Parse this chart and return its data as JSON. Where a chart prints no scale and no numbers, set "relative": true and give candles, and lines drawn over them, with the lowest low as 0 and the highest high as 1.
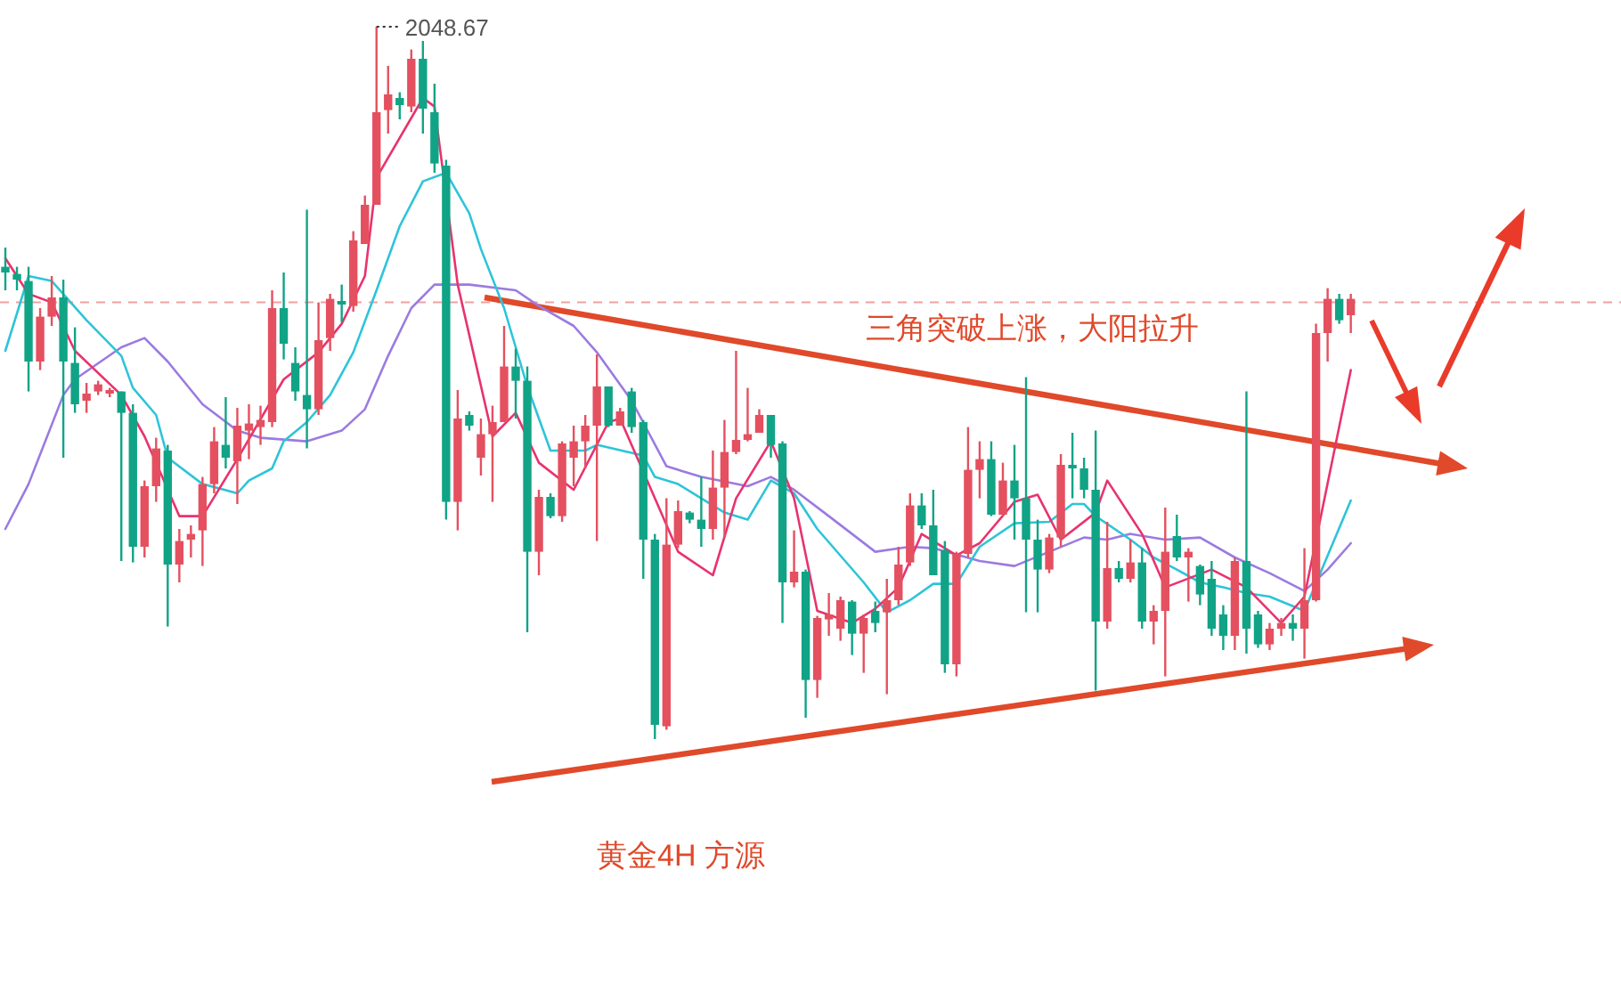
{
  "chart_data": {
    "type": "candlestick",
    "relative": true,
    "categories": [
      null,
      null,
      null,
      null,
      null,
      null,
      null,
      null,
      null,
      null,
      null,
      null,
      null,
      null,
      null,
      null,
      null,
      null,
      null,
      null,
      null,
      null,
      null,
      null,
      null,
      null,
      null,
      null,
      null,
      null,
      null,
      null,
      null,
      null,
      null,
      null,
      null,
      null,
      null,
      null,
      null,
      null,
      null,
      null,
      null,
      null,
      null,
      null,
      null,
      null,
      null,
      null,
      null,
      null,
      null,
      null,
      null,
      null,
      null,
      null,
      null,
      null,
      null,
      null,
      null,
      null,
      null,
      null,
      null,
      null,
      null,
      null,
      null,
      null,
      null,
      null,
      null,
      null,
      null,
      null,
      null,
      null,
      null,
      null,
      null,
      null,
      null,
      null,
      null,
      null,
      null,
      null,
      null,
      null,
      null,
      null,
      null,
      null,
      null,
      null,
      null,
      null,
      null,
      null,
      null,
      null,
      null,
      null,
      null,
      null,
      null,
      null,
      null,
      null,
      null,
      null,
      null,
      null,
      null,
      null,
      null,
      null,
      null,
      null,
      null,
      null,
      null,
      null,
      null,
      null,
      null,
      null
    ],
    "colors": [
      "#11a386",
      "#11a386",
      "#11a386",
      "#e4505f",
      "#e4505f",
      "#11a386",
      "#11a386",
      "#e4505f",
      "#e4505f",
      "#e4505f",
      "#11a386",
      "#11a386",
      "#e4505f",
      "#e4505f",
      "#11a386",
      "#e4505f",
      "#e4505f",
      "#e4505f",
      "#e4505f",
      "#11a386",
      "#e4505f",
      "#e4505f",
      "#e4505f",
      "#e4505f",
      "#11a386",
      "#11a386",
      "#11a386",
      "#e4505f",
      "#e4505f",
      "#11a386",
      "#e4505f",
      "#e4505f",
      "#e4505f",
      "#e4505f",
      "#11a386",
      "#e4505f",
      "#11a386",
      "#11a386",
      "#11a386",
      "#e4505f",
      "#11a386",
      "#e4505f",
      "#e4505f",
      "#e4505f",
      "#11a386",
      "#11a386",
      "#e4505f",
      "#11a386",
      "#e4505f",
      "#e4505f",
      "#e4505f",
      "#e4505f",
      "#11a386",
      "#e4505f",
      "#11a386",
      "#11a386",
      "#11a386",
      "#e4505f",
      "#e4505f",
      "#11a386",
      "#11a386",
      "#e4505f",
      "#e4505f",
      "#e4505f",
      "#e4505f",
      "#e4505f",
      "#11a386",
      "#11a386",
      "#e4505f",
      "#11a386",
      "#e4505f",
      "#e4505f",
      "#e4505f",
      "#11a386",
      "#e4505f",
      "#11a386",
      "#e4505f",
      "#e4505f",
      "#e4505f",
      "#11a386",
      "#11a386",
      "#11a386",
      "#e4505f",
      "#e4505f",
      "#e4505f",
      "#11a386",
      "#e4505f",
      "#11a386",
      "#11a386",
      "#11a386",
      "#e4505f",
      "#e4505f",
      "#11a386",
      "#11a386",
      "#11a386",
      "#e4505f",
      "#11a386",
      "#e4505f",
      "#11a386",
      "#e4505f",
      "#e4505f",
      "#11a386",
      "#e4505f",
      "#11a386",
      "#11a386",
      "#11a386",
      "#e4505f",
      "#11a386",
      "#11a386",
      "#e4505f",
      "#e4505f",
      "#11a386",
      "#e4505f",
      "#e4505f",
      "#e4505f",
      "#11a386",
      "#e4505f",
      null,
      null,
      null,
      null,
      null,
      null,
      null,
      null,
      null,
      null,
      null,
      null,
      null,
      null,
      null
    ],
    "ohlc": [
      [
        0.663,
        0.69,
        0.63,
        0.655
      ],
      [
        0.653,
        0.663,
        0.63,
        0.645
      ],
      [
        0.643,
        0.663,
        0.488,
        0.53
      ],
      [
        0.53,
        0.605,
        0.518,
        0.593
      ],
      [
        0.593,
        0.65,
        0.58,
        0.62
      ],
      [
        0.62,
        0.645,
        0.395,
        0.53
      ],
      [
        0.528,
        0.578,
        0.458,
        0.47
      ],
      [
        0.475,
        0.5,
        0.458,
        0.485
      ],
      [
        0.488,
        0.503,
        0.483,
        0.498
      ],
      [
        0.485,
        0.493,
        0.48,
        0.49
      ],
      [
        0.488,
        0.488,
        0.25,
        0.458
      ],
      [
        0.458,
        0.47,
        0.248,
        0.27
      ],
      [
        0.27,
        0.363,
        0.255,
        0.355
      ],
      [
        0.355,
        0.423,
        0.333,
        0.408
      ],
      [
        0.405,
        0.413,
        0.158,
        0.245
      ],
      [
        0.245,
        0.295,
        0.22,
        0.278
      ],
      [
        0.28,
        0.3,
        0.255,
        0.288
      ],
      [
        0.293,
        0.368,
        0.243,
        0.358
      ],
      [
        0.358,
        0.438,
        0.345,
        0.418
      ],
      [
        0.413,
        0.48,
        0.38,
        0.395
      ],
      [
        0.39,
        0.465,
        0.33,
        0.44
      ],
      [
        0.433,
        0.47,
        0.393,
        0.443
      ],
      [
        0.438,
        0.468,
        0.413,
        0.448
      ],
      [
        0.445,
        0.63,
        0.438,
        0.605
      ],
      [
        0.605,
        0.655,
        0.533,
        0.555
      ],
      [
        0.528,
        0.55,
        0.475,
        0.488
      ],
      [
        0.483,
        0.743,
        0.408,
        0.463
      ],
      [
        0.463,
        0.613,
        0.455,
        0.56
      ],
      [
        0.563,
        0.625,
        0.545,
        0.618
      ],
      [
        0.615,
        0.638,
        0.585,
        0.61
      ],
      [
        0.608,
        0.713,
        0.6,
        0.7
      ],
      [
        0.695,
        0.763,
        0.695,
        0.75
      ],
      [
        0.75,
        1.0,
        0.75,
        0.88
      ],
      [
        0.883,
        0.945,
        0.85,
        0.905
      ],
      [
        0.9,
        0.908,
        0.87,
        0.89
      ],
      [
        0.888,
        0.968,
        0.88,
        0.955
      ],
      [
        0.955,
        0.98,
        0.85,
        0.885
      ],
      [
        0.88,
        0.92,
        0.795,
        0.808
      ],
      [
        0.805,
        0.813,
        0.308,
        0.333
      ],
      [
        0.333,
        0.49,
        0.293,
        0.45
      ],
      [
        0.455,
        0.46,
        0.433,
        0.44
      ],
      [
        0.395,
        0.45,
        0.37,
        0.428
      ],
      [
        0.428,
        0.468,
        0.333,
        0.445
      ],
      [
        0.445,
        0.58,
        0.445,
        0.523
      ],
      [
        0.523,
        0.548,
        0.45,
        0.503
      ],
      [
        0.503,
        0.523,
        0.15,
        0.263
      ],
      [
        0.263,
        0.35,
        0.23,
        0.34
      ],
      [
        0.34,
        0.345,
        0.31,
        0.313
      ],
      [
        0.313,
        0.418,
        0.305,
        0.415
      ],
      [
        0.395,
        0.44,
        0.355,
        0.418
      ],
      [
        0.418,
        0.455,
        0.38,
        0.44
      ],
      [
        0.44,
        0.54,
        0.278,
        0.495
      ],
      [
        0.495,
        0.495,
        0.438,
        0.44
      ],
      [
        0.44,
        0.465,
        0.44,
        0.46
      ],
      [
        0.488,
        0.493,
        0.43,
        0.438
      ],
      [
        0.445,
        0.448,
        0.225,
        0.28
      ],
      [
        0.28,
        0.288,
        0.0,
        0.02
      ],
      [
        0.018,
        0.338,
        0.013,
        0.273
      ],
      [
        0.273,
        0.335,
        0.268,
        0.32
      ],
      [
        0.318,
        0.32,
        0.303,
        0.308
      ],
      [
        0.308,
        0.368,
        0.27,
        0.295
      ],
      [
        0.295,
        0.405,
        0.28,
        0.353
      ],
      [
        0.353,
        0.448,
        0.283,
        0.403
      ],
      [
        0.403,
        0.545,
        0.4,
        0.42
      ],
      [
        0.42,
        0.493,
        0.418,
        0.428
      ],
      [
        0.43,
        0.463,
        0.43,
        0.455
      ],
      [
        0.455,
        0.455,
        0.395,
        0.413
      ],
      [
        0.415,
        0.418,
        0.163,
        0.22
      ],
      [
        0.22,
        0.293,
        0.213,
        0.235
      ],
      [
        0.235,
        0.238,
        0.03,
        0.083
      ],
      [
        0.083,
        0.173,
        0.058,
        0.17
      ],
      [
        0.168,
        0.205,
        0.145,
        0.175
      ],
      [
        0.155,
        0.2,
        0.138,
        0.195
      ],
      [
        0.193,
        0.195,
        0.118,
        0.148
      ],
      [
        0.148,
        0.175,
        0.093,
        0.17
      ],
      [
        0.18,
        0.193,
        0.15,
        0.163
      ],
      [
        0.178,
        0.225,
        0.063,
        0.195
      ],
      [
        0.195,
        0.27,
        0.188,
        0.245
      ],
      [
        0.248,
        0.345,
        0.243,
        0.328
      ],
      [
        0.328,
        0.345,
        0.295,
        0.3
      ],
      [
        0.3,
        0.35,
        0.23,
        0.23
      ],
      [
        0.265,
        0.278,
        0.093,
        0.105
      ],
      [
        0.105,
        0.263,
        0.088,
        0.26
      ],
      [
        0.26,
        0.438,
        0.255,
        0.378
      ],
      [
        0.378,
        0.418,
        0.338,
        0.393
      ],
      [
        0.393,
        0.418,
        0.313,
        0.315
      ],
      [
        0.315,
        0.388,
        0.313,
        0.363
      ],
      [
        0.363,
        0.413,
        0.28,
        0.338
      ],
      [
        0.338,
        0.508,
        0.178,
        0.28
      ],
      [
        0.28,
        0.308,
        0.178,
        0.238
      ],
      [
        0.238,
        0.288,
        0.233,
        0.283
      ],
      [
        0.283,
        0.4,
        0.27,
        0.385
      ],
      [
        0.385,
        0.43,
        0.338,
        0.38
      ],
      [
        0.38,
        0.395,
        0.338,
        0.35
      ],
      [
        0.35,
        0.433,
        0.068,
        0.165
      ],
      [
        0.165,
        0.305,
        0.155,
        0.24
      ],
      [
        0.24,
        0.25,
        0.22,
        0.225
      ],
      [
        0.225,
        0.28,
        0.22,
        0.248
      ],
      [
        0.248,
        0.268,
        0.155,
        0.165
      ],
      [
        0.165,
        0.188,
        0.133,
        0.18
      ],
      [
        0.18,
        0.325,
        0.088,
        0.263
      ],
      [
        0.285,
        0.315,
        0.25,
        0.255
      ],
      [
        0.255,
        0.268,
        0.193,
        0.263
      ],
      [
        0.243,
        0.245,
        0.188,
        0.203
      ],
      [
        0.225,
        0.25,
        0.145,
        0.155
      ],
      [
        0.175,
        0.188,
        0.125,
        0.145
      ],
      [
        0.145,
        0.255,
        0.125,
        0.25
      ],
      [
        0.25,
        0.488,
        0.12,
        0.155
      ],
      [
        0.175,
        0.18,
        0.128,
        0.133
      ],
      [
        0.133,
        0.163,
        0.125,
        0.155
      ],
      [
        0.155,
        0.17,
        0.145,
        0.163
      ],
      [
        0.163,
        0.175,
        0.138,
        0.155
      ],
      [
        0.155,
        0.268,
        0.113,
        0.195
      ],
      [
        0.195,
        0.583,
        0.193,
        0.57
      ],
      [
        0.57,
        0.633,
        0.53,
        0.618
      ],
      [
        0.618,
        0.625,
        0.583,
        0.588
      ],
      [
        0.595,
        0.625,
        0.57,
        0.618
      ],
      null,
      null,
      null,
      null,
      null,
      null,
      null,
      null,
      null,
      null,
      null,
      null,
      null,
      null,
      null
    ],
    "series": [
      {
        "type": "line",
        "color": "#9b7be0",
        "values": [
          0.295,
          null,
          0.358,
          null,
          null,
          0.483,
          0.505,
          null,
          null,
          null,
          0.55,
          null,
          0.563,
          null,
          0.53,
          null,
          null,
          0.47,
          null,
          null,
          0.433,
          null,
          0.423,
          null,
          null,
          null,
          0.418,
          null,
          null,
          0.433,
          null,
          0.463,
          null,
          0.538,
          null,
          0.605,
          null,
          0.638,
          null,
          null,
          0.638,
          null,
          null,
          null,
          0.63,
          null,
          0.608,
          null,
          null,
          0.58,
          null,
          0.543,
          null,
          null,
          0.475,
          null,
          null,
          0.383,
          null,
          null,
          0.368,
          null,
          null,
          null,
          0.355,
          null,
          0.368,
          null,
          0.35,
          null,
          null,
          0.313,
          null,
          null,
          null,
          0.263,
          null,
          null,
          0.27,
          null,
          0.268,
          null,
          null,
          null,
          0.25,
          null,
          null,
          0.243,
          null,
          null,
          0.263,
          null,
          null,
          0.283,
          null,
          0.28,
          null,
          0.288,
          null,
          null,
          0.28,
          null,
          null,
          0.283,
          null,
          null,
          0.255,
          null,
          null,
          0.233,
          null,
          null,
          0.208,
          null,
          0.238,
          null,
          0.275,
          null,
          null,
          null,
          null,
          null,
          null,
          null,
          null,
          null,
          null,
          null,
          null,
          null,
          null,
          null
        ]
      },
      {
        "type": "line",
        "color": "#2ec4d8",
        "values": [
          0.545,
          null,
          0.65,
          null,
          0.643,
          null,
          null,
          0.588,
          null,
          null,
          0.538,
          0.493,
          null,
          0.455,
          0.395,
          null,
          null,
          0.358,
          null,
          null,
          0.345,
          0.363,
          null,
          0.38,
          0.418,
          null,
          0.445,
          null,
          0.483,
          null,
          0.543,
          null,
          0.63,
          null,
          0.72,
          null,
          0.783,
          null,
          0.795,
          null,
          0.738,
          0.688,
          null,
          0.605,
          null,
          0.495,
          null,
          0.405,
          null,
          null,
          0.405,
          0.413,
          null,
          null,
          null,
          0.398,
          0.368,
          null,
          0.358,
          null,
          0.338,
          null,
          0.318,
          null,
          0.308,
          null,
          0.363,
          null,
          0.345,
          null,
          0.295,
          null,
          null,
          null,
          0.22,
          null,
          0.178,
          null,
          0.195,
          null,
          0.218,
          null,
          0.218,
          null,
          0.27,
          null,
          null,
          0.303,
          null,
          null,
          0.305,
          null,
          0.33,
          0.33,
          0.313,
          null,
          null,
          0.28,
          null,
          0.255,
          null,
          0.238,
          null,
          0.22,
          null,
          0.213,
          null,
          0.205,
          null,
          0.2,
          null,
          null,
          0.18,
          null,
          null,
          null,
          0.335,
          null,
          null,
          null,
          null,
          null,
          null,
          null,
          null,
          null,
          null,
          null,
          null,
          null,
          null,
          null
        ]
      },
      {
        "type": "line",
        "color": "#e8336e",
        "values": [
          0.675,
          null,
          0.625,
          null,
          0.613,
          null,
          0.545,
          null,
          null,
          null,
          0.483,
          null,
          0.425,
          null,
          null,
          0.313,
          null,
          0.313,
          null,
          null,
          0.393,
          null,
          null,
          null,
          0.505,
          null,
          null,
          0.543,
          null,
          0.583,
          null,
          0.65,
          0.788,
          null,
          null,
          null,
          0.9,
          0.888,
          null,
          0.638,
          null,
          null,
          0.425,
          null,
          0.458,
          null,
          0.388,
          null,
          null,
          0.35,
          null,
          null,
          0.445,
          0.45,
          null,
          null,
          0.338,
          null,
          0.263,
          null,
          null,
          0.23,
          null,
          0.338,
          null,
          null,
          0.418,
          null,
          0.338,
          null,
          0.18,
          null,
          null,
          0.163,
          null,
          0.183,
          null,
          0.213,
          null,
          0.288,
          null,
          null,
          0.258,
          null,
          0.275,
          null,
          null,
          0.333,
          null,
          0.343,
          null,
          0.28,
          null,
          null,
          0.318,
          0.363,
          null,
          null,
          0.288,
          null,
          0.213,
          null,
          null,
          null,
          0.238,
          null,
          null,
          0.213,
          null,
          null,
          0.163,
          null,
          0.2,
          null,
          null,
          null,
          0.518,
          null,
          null,
          null,
          null,
          null,
          null,
          null,
          null,
          null,
          null,
          null,
          null,
          null,
          null,
          null
        ]
      }
    ],
    "ref_lines": [
      {
        "axis": "y",
        "value": 0.613,
        "color": "#f2a0a0",
        "line_style": "dashed"
      }
    ],
    "annotations": [
      "2048.67",
      "三角突破上涨，大阳拉升",
      "黄金4H 方源"
    ]
  }
}
